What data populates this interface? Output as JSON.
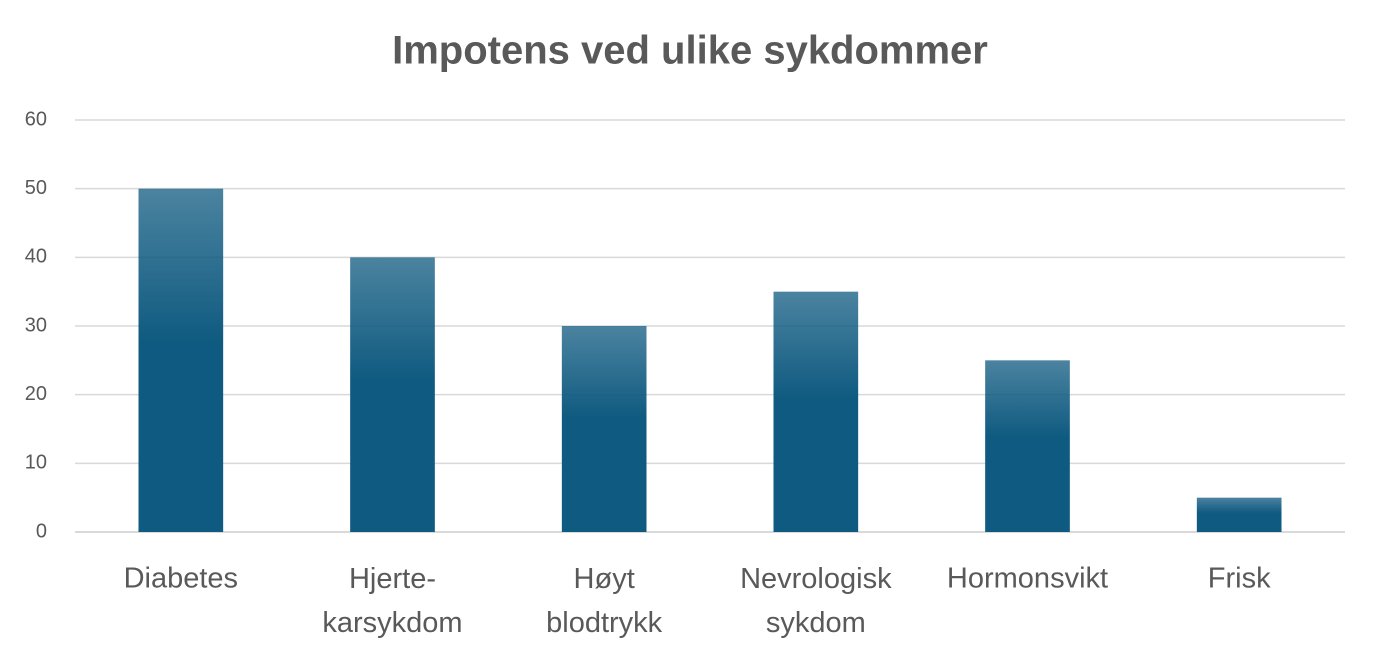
{
  "chart_data": {
    "type": "bar",
    "title": "Impotens ved ulike sykdommer",
    "categories": [
      "Diabetes",
      "Hjerte-karsykdom",
      "Høyt blodtrykk",
      "Nevrologisk sykdom",
      "Hormonsvikt",
      "Frisk"
    ],
    "values": [
      50,
      40,
      30,
      35,
      25,
      5
    ],
    "color": "#0f5a80",
    "ylim": [
      0,
      60
    ],
    "yticks": [
      0,
      10,
      20,
      30,
      40,
      50,
      60
    ],
    "grid": true
  }
}
